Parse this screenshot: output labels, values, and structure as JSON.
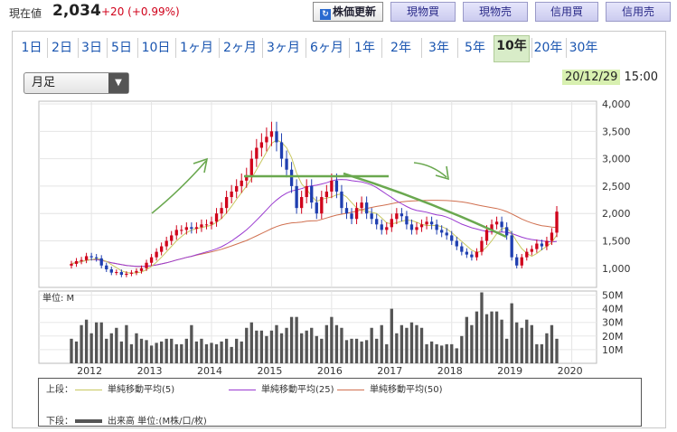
{
  "header": {
    "price_label": "現在値",
    "price_value": "2,034",
    "price_change": "+20 (+0.99%)",
    "buttons": {
      "update": "株価更新",
      "update_icon": "↻",
      "cash_buy": "現物買",
      "cash_sell": "現物売",
      "margin_buy": "信用買",
      "margin_sell": "信用売"
    }
  },
  "tabs": [
    "1日",
    "2日",
    "3日",
    "5日",
    "10日",
    "1ヶ月",
    "2ヶ月",
    "3ヶ月",
    "6ヶ月",
    "1年",
    "2年",
    "3年",
    "5年",
    "10年",
    "20年",
    "30年"
  ],
  "active_tab": "10年",
  "period_select": {
    "value": "月足",
    "icon": "triangle-down-icon"
  },
  "datetime": {
    "date": "20/12/29",
    "time": " 15:00"
  },
  "legend": {
    "upper_label": "上段：",
    "lower_label": "下段：",
    "ma5": "単純移動平均(5)",
    "ma25": "単純移動平均(25)",
    "ma50": "単純移動平均(50)",
    "volume": "出来高 単位:(M株/口/枚)"
  },
  "colors": {
    "up": "#d0021b",
    "down": "#1f3fb0",
    "ma5": "#c8c860",
    "ma25": "#9a3ad0",
    "ma50": "#d07050",
    "volume": "#555555",
    "annotation": "#6aa84f"
  },
  "chart_data": {
    "type": "candlestick",
    "frequency": "monthly",
    "x_ticks": [
      "2012",
      "2013",
      "2014",
      "2015",
      "2016",
      "2017",
      "2018",
      "2019",
      "2020"
    ],
    "price_ticks": [
      1000,
      1500,
      2000,
      2500,
      3000,
      3500,
      4000
    ],
    "price_tick_labels": [
      "1,000",
      "1,500",
      "2,000",
      "2,500",
      "3,000",
      "3,500",
      "4,000"
    ],
    "ylim_price": [
      650,
      4050
    ],
    "volume_unit_label": "単位: M",
    "volume_ticks": [
      "10M",
      "20M",
      "30M",
      "40M",
      "50M"
    ],
    "volume_tick_values": [
      10,
      20,
      30,
      40,
      50
    ],
    "ylim_volume": [
      0,
      53
    ],
    "close": [
      1080,
      1130,
      1150,
      1220,
      1200,
      1180,
      1050,
      980,
      920,
      930,
      880,
      900,
      920,
      950,
      1000,
      1100,
      1200,
      1300,
      1400,
      1500,
      1600,
      1700,
      1700,
      1750,
      1720,
      1750,
      1800,
      1800,
      1850,
      2000,
      2100,
      2300,
      2400,
      2500,
      2600,
      2700,
      3000,
      3200,
      3300,
      3400,
      3500,
      3300,
      3000,
      2800,
      2500,
      2100,
      2300,
      2500,
      2200,
      2000,
      2300,
      2400,
      2600,
      2400,
      2100,
      2000,
      1900,
      2100,
      2200,
      2000,
      1900,
      1800,
      1700,
      1750,
      1900,
      2000,
      1950,
      1800,
      1700,
      1750,
      1800,
      1850,
      1800,
      1700,
      1650,
      1600,
      1500,
      1400,
      1300,
      1250,
      1200,
      1300,
      1500,
      1700,
      1800,
      1850,
      1750,
      1600,
      1200,
      1050,
      1200,
      1300,
      1350,
      1450,
      1400,
      1500,
      1650,
      2034
    ],
    "volume_M": [
      18,
      16,
      28,
      32,
      22,
      30,
      30,
      18,
      22,
      26,
      16,
      28,
      14,
      22,
      18,
      17,
      13,
      15,
      16,
      18,
      18,
      14,
      14,
      18,
      28,
      16,
      18,
      14,
      15,
      14,
      16,
      18,
      12,
      18,
      16,
      26,
      30,
      24,
      24,
      20,
      24,
      28,
      22,
      26,
      34,
      34,
      22,
      24,
      26,
      20,
      18,
      28,
      34,
      28,
      26,
      17,
      18,
      18,
      16,
      17,
      26,
      18,
      28,
      14,
      40,
      22,
      28,
      26,
      30,
      28,
      26,
      14,
      16,
      14,
      13,
      14,
      14,
      11,
      20,
      34,
      28,
      38,
      52,
      36,
      38,
      38,
      32,
      18,
      44,
      30,
      26,
      32,
      28,
      14,
      14,
      22,
      28,
      18
    ]
  }
}
